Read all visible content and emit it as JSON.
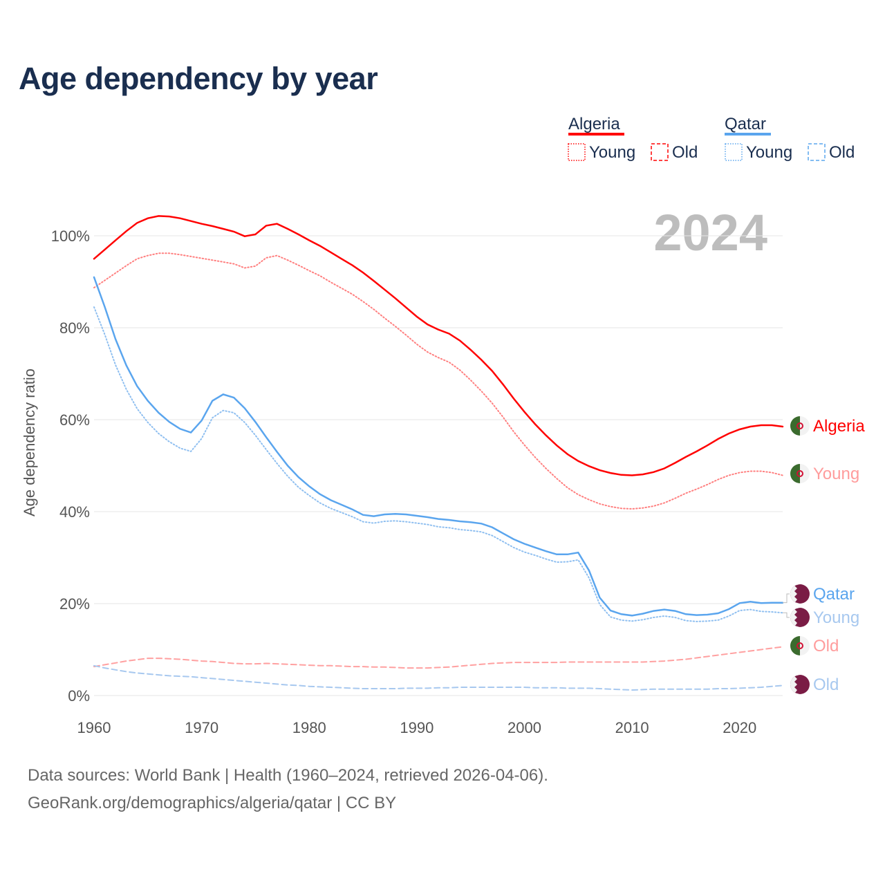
{
  "title": "Age dependency by year",
  "year_watermark": "2024",
  "footer": {
    "line1": "Data sources: World Bank | Health (1960–2024, retrieved 2026-04-06).",
    "line2": "GeoRank.org/demographics/algeria/qatar | CC BY"
  },
  "legend": {
    "groups": [
      {
        "name": "Algeria",
        "color": "#ff0000",
        "young": "Young",
        "old": "Old"
      },
      {
        "name": "Qatar",
        "color": "#5aa5ee",
        "young": "Young",
        "old": "Old"
      }
    ]
  },
  "end_labels": {
    "algeria_total": "Algeria",
    "algeria_young": "Young",
    "algeria_old": "Old",
    "qatar_total": "Qatar",
    "qatar_young": "Young",
    "qatar_old": "Old"
  },
  "chart_data": {
    "type": "line",
    "title": "Age dependency by year",
    "xlabel": "",
    "ylabel": "Age dependency ratio",
    "xlim": [
      1960,
      2024
    ],
    "ylim": [
      0,
      105
    ],
    "xticks": [
      "1960",
      "1970",
      "1980",
      "1990",
      "2000",
      "2010",
      "2020"
    ],
    "yticks": [
      "0%",
      "20%",
      "40%",
      "60%",
      "80%",
      "100%"
    ],
    "ytick_values": [
      0,
      20,
      40,
      60,
      80,
      100
    ],
    "grid": true,
    "x_start": 1960,
    "series": [
      {
        "id": "algeria_total",
        "name": "Algeria",
        "color": "#ff0000",
        "style": "solid",
        "values": [
          95,
          97,
          99,
          101,
          102.8,
          103.8,
          104.3,
          104.2,
          103.8,
          103.2,
          102.6,
          102.1,
          101.5,
          100.9,
          99.9,
          100.3,
          102.2,
          102.6,
          101.5,
          100.3,
          99,
          97.8,
          96.4,
          95,
          93.6,
          92,
          90.2,
          88.3,
          86.4,
          84.4,
          82.4,
          80.7,
          79.6,
          78.7,
          77.2,
          75.2,
          73,
          70.6,
          67.7,
          64.6,
          61.7,
          59,
          56.6,
          54.4,
          52.5,
          51,
          49.9,
          49,
          48.4,
          48,
          47.9,
          48.1,
          48.6,
          49.4,
          50.6,
          51.9,
          53.1,
          54.4,
          55.8,
          57,
          57.9,
          58.5,
          58.8,
          58.8,
          58.5
        ]
      },
      {
        "id": "algeria_young",
        "name": "Algeria Young",
        "color": "#ff7f7f",
        "style": "dotted",
        "values": [
          88.7,
          90.3,
          91.9,
          93.5,
          95,
          95.7,
          96.2,
          96.2,
          95.9,
          95.5,
          95.1,
          94.7,
          94.3,
          93.9,
          93,
          93.4,
          95.2,
          95.7,
          94.7,
          93.6,
          92.4,
          91.3,
          89.9,
          88.6,
          87.3,
          85.7,
          84,
          82.1,
          80.3,
          78.4,
          76.4,
          74.7,
          73.5,
          72.5,
          70.8,
          68.6,
          66.2,
          63.6,
          60.6,
          57.4,
          54.5,
          51.8,
          49.4,
          47.2,
          45.2,
          43.7,
          42.6,
          41.7,
          41.1,
          40.7,
          40.6,
          40.8,
          41.2,
          41.9,
          42.9,
          44,
          44.9,
          45.9,
          47,
          47.9,
          48.5,
          48.8,
          48.8,
          48.5,
          47.9
        ]
      },
      {
        "id": "algeria_old",
        "name": "Algeria Old",
        "color": "#ffa0a0",
        "style": "dashed",
        "values": [
          6.3,
          6.7,
          7.1,
          7.5,
          7.8,
          8.1,
          8.1,
          8,
          7.9,
          7.7,
          7.5,
          7.4,
          7.2,
          7,
          6.9,
          6.9,
          7,
          6.9,
          6.8,
          6.7,
          6.6,
          6.5,
          6.5,
          6.4,
          6.3,
          6.3,
          6.2,
          6.2,
          6.1,
          6,
          6,
          6,
          6.1,
          6.2,
          6.4,
          6.6,
          6.8,
          7,
          7.1,
          7.2,
          7.2,
          7.2,
          7.2,
          7.2,
          7.3,
          7.3,
          7.3,
          7.3,
          7.3,
          7.3,
          7.3,
          7.3,
          7.4,
          7.5,
          7.7,
          7.9,
          8.2,
          8.5,
          8.8,
          9.1,
          9.4,
          9.7,
          10,
          10.3,
          10.6
        ]
      },
      {
        "id": "qatar_total",
        "name": "Qatar",
        "color": "#5aa5ee",
        "style": "solid",
        "values": [
          91,
          84.5,
          77.5,
          71.8,
          67.3,
          64.1,
          61.5,
          59.5,
          58,
          57.2,
          59.8,
          64.1,
          65.5,
          64.8,
          62.5,
          59.5,
          56.2,
          53,
          50,
          47.5,
          45.5,
          43.8,
          42.5,
          41.5,
          40.5,
          39.3,
          39,
          39.4,
          39.5,
          39.4,
          39.1,
          38.8,
          38.4,
          38.2,
          37.9,
          37.7,
          37.4,
          36.6,
          35.3,
          34,
          33,
          32.2,
          31.4,
          30.7,
          30.7,
          31.1,
          27.2,
          21.3,
          18.5,
          17.7,
          17.4,
          17.8,
          18.4,
          18.7,
          18.4,
          17.7,
          17.5,
          17.6,
          17.9,
          18.8,
          20.1,
          20.4,
          20.1,
          20.2,
          20.2
        ]
      },
      {
        "id": "qatar_young",
        "name": "Qatar Young",
        "color": "#8fbff0",
        "style": "dotted",
        "values": [
          84.5,
          78.5,
          71.9,
          66.6,
          62.4,
          59.4,
          57,
          55.2,
          53.8,
          53.1,
          55.9,
          60.4,
          62,
          61.5,
          59.4,
          56.6,
          53.5,
          50.5,
          47.7,
          45.3,
          43.5,
          41.9,
          40.7,
          39.8,
          38.9,
          37.8,
          37.5,
          37.9,
          38,
          37.8,
          37.5,
          37.2,
          36.7,
          36.5,
          36.1,
          35.9,
          35.6,
          34.8,
          33.5,
          32.2,
          31.2,
          30.5,
          29.7,
          29,
          29.1,
          29.5,
          25.6,
          19.8,
          17.1,
          16.4,
          16.2,
          16.5,
          17,
          17.3,
          17,
          16.3,
          16.1,
          16.2,
          16.4,
          17.3,
          18.5,
          18.7,
          18.3,
          18.2,
          18
        ]
      },
      {
        "id": "qatar_old",
        "name": "Qatar Old",
        "color": "#a7c8ef",
        "style": "dashed",
        "values": [
          6.5,
          6,
          5.6,
          5.2,
          4.9,
          4.7,
          4.5,
          4.3,
          4.2,
          4.1,
          3.9,
          3.7,
          3.5,
          3.3,
          3.1,
          2.9,
          2.7,
          2.5,
          2.3,
          2.2,
          2,
          1.9,
          1.8,
          1.7,
          1.6,
          1.5,
          1.5,
          1.5,
          1.5,
          1.6,
          1.6,
          1.6,
          1.7,
          1.7,
          1.8,
          1.8,
          1.8,
          1.8,
          1.8,
          1.8,
          1.8,
          1.7,
          1.7,
          1.7,
          1.6,
          1.6,
          1.6,
          1.5,
          1.4,
          1.3,
          1.2,
          1.3,
          1.4,
          1.4,
          1.4,
          1.4,
          1.4,
          1.4,
          1.5,
          1.5,
          1.6,
          1.7,
          1.8,
          2,
          2.2
        ]
      }
    ]
  }
}
